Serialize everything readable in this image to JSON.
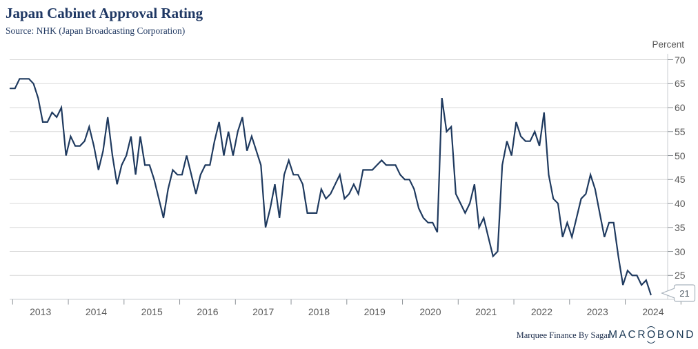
{
  "header": {
    "title": "Japan Cabinet Approval Rating",
    "source": "Source: NHK (Japan Broadcasting Corporation)"
  },
  "axes": {
    "unit_label": "Percent"
  },
  "footer": {
    "watermark": "Marquee Finance By Sagar",
    "logo_left": "MACR",
    "logo_o": "O",
    "logo_right": "BOND"
  },
  "chart_data": {
    "type": "line",
    "title": "Japan Cabinet Approval Rating",
    "source": "NHK (Japan Broadcasting Corporation)",
    "ylabel": "Percent",
    "frequency": "monthly",
    "start_month": "2012-12",
    "end_month": "2024-06",
    "ylim": [
      20,
      70
    ],
    "grid": true,
    "y_ticks": [
      70,
      65,
      60,
      55,
      50,
      45,
      40,
      35,
      30,
      25
    ],
    "x_year_labels": [
      "2013",
      "2014",
      "2015",
      "2016",
      "2017",
      "2018",
      "2019",
      "2020",
      "2021",
      "2022",
      "2023",
      "2024"
    ],
    "last_value": 21,
    "last_value_label": "21",
    "line_color": "#1f3a5f",
    "grid_color": "#d9d9d9",
    "axis_color": "#c9cdd2",
    "tick_color": "#8c9196",
    "label_color": "#595959",
    "callout_border_color": "#a9b3bd",
    "callout_text_color": "#525d66",
    "values": [
      64,
      64,
      66,
      66,
      66,
      65,
      62,
      57,
      57,
      59,
      58,
      60,
      50,
      54,
      52,
      52,
      53,
      56,
      52,
      47,
      51,
      58,
      50,
      44,
      48,
      50,
      54,
      46,
      54,
      48,
      48,
      45,
      41,
      37,
      43,
      47,
      46,
      46,
      50,
      46,
      42,
      46,
      48,
      48,
      53,
      57,
      50,
      55,
      50,
      55,
      58,
      51,
      54,
      51,
      48,
      35,
      39,
      44,
      37,
      46,
      49,
      46,
      46,
      44,
      38,
      38,
      38,
      43,
      41,
      42,
      44,
      46,
      41,
      42,
      44,
      42,
      47,
      47,
      47,
      48,
      49,
      48,
      48,
      48,
      46,
      45,
      45,
      43,
      39,
      37,
      36,
      36,
      34,
      62,
      55,
      56,
      42,
      40,
      38,
      40,
      44,
      35,
      37,
      33,
      29,
      30,
      48,
      53,
      50,
      57,
      54,
      53,
      53,
      55,
      52,
      59,
      46,
      41,
      40,
      33,
      36,
      33,
      37,
      41,
      42,
      46,
      43,
      38,
      33,
      36,
      36,
      29,
      23,
      26,
      25,
      25,
      23,
      24,
      21
    ]
  }
}
